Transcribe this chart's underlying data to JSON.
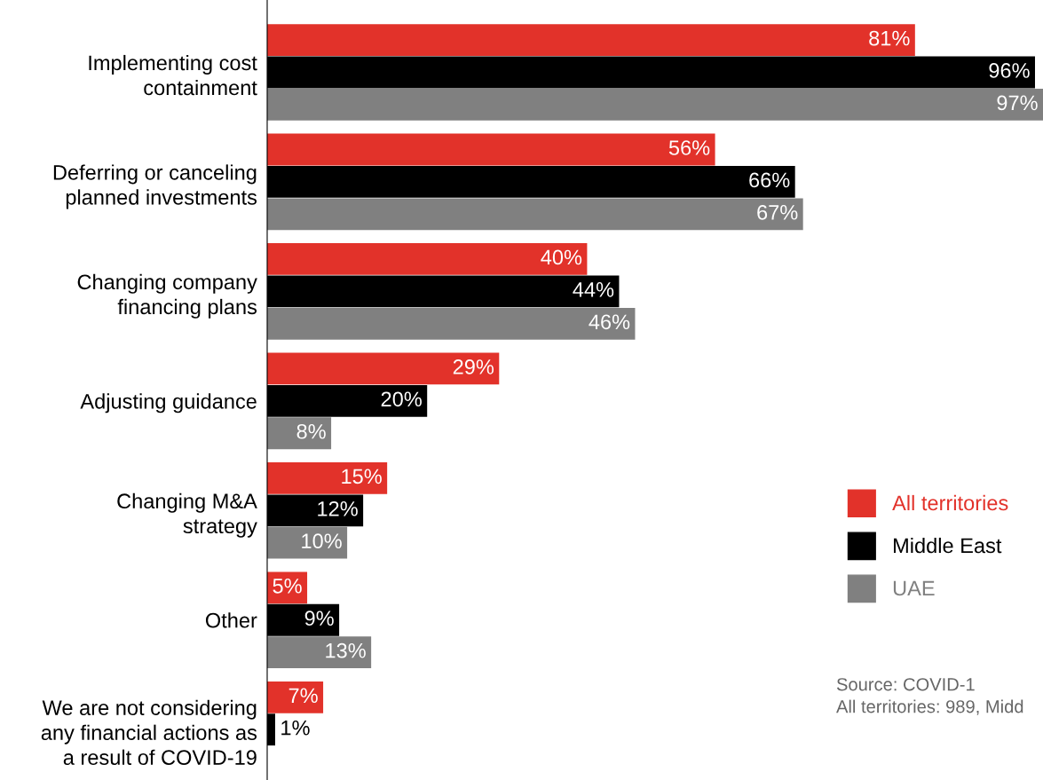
{
  "chart_data": {
    "type": "bar",
    "orientation": "horizontal",
    "categories": [
      "Implementing cost\ncontainment",
      "Deferring or canceling\nplanned investments",
      "Changing company\nfinancing plans",
      "Adjusting guidance",
      "Changing M&A\nstrategy",
      "Other",
      "We are not considering\nany financial actions as\na result of COVID-19"
    ],
    "series": [
      {
        "name": "All territories",
        "color": "#e2322a",
        "values": [
          81,
          56,
          40,
          29,
          15,
          5,
          7
        ],
        "value_labels": [
          "81%",
          "56%",
          "40%",
          "29%",
          "15%",
          "5%",
          "7%"
        ]
      },
      {
        "name": "Middle East",
        "color": "#000000",
        "values": [
          96,
          66,
          44,
          20,
          12,
          9,
          1
        ],
        "value_labels": [
          "96%",
          "66%",
          "44%",
          "20%",
          "12%",
          "9%",
          "1%"
        ]
      },
      {
        "name": "UAE",
        "color": "#808080",
        "values": [
          97,
          67,
          46,
          8,
          10,
          13,
          null
        ],
        "value_labels": [
          "97%",
          "67%",
          "46%",
          "8%",
          "10%",
          "13%",
          null
        ]
      }
    ],
    "legend": "right",
    "grid": false,
    "annotations": [
      "Source: COVID-1",
      "All territories: 989, Midd"
    ]
  }
}
